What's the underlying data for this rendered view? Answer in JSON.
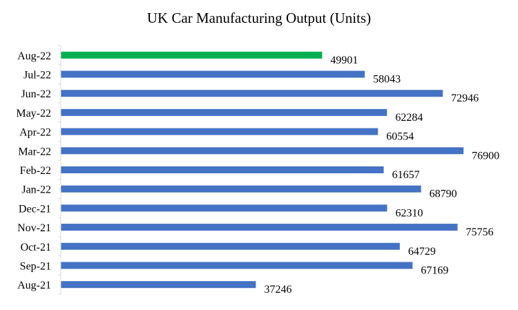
{
  "chart_data": {
    "type": "bar",
    "orientation": "horizontal",
    "title": "UK Car Manufacturing Output (Units)",
    "xlabel": "",
    "ylabel": "",
    "grid": false,
    "legend": "none",
    "categories": [
      "Aug-22",
      "Jul-22",
      "Jun-22",
      "May-22",
      "Apr-22",
      "Mar-22",
      "Feb-22",
      "Jan-22",
      "Dec-21",
      "Nov-21",
      "Oct-21",
      "Sep-21",
      "Aug-21"
    ],
    "values": [
      49901,
      58043,
      72946,
      62284,
      60554,
      76900,
      61657,
      68790,
      62310,
      75756,
      64729,
      67169,
      37246
    ],
    "value_labels": [
      "49901",
      "58043",
      "72946",
      "62284",
      "60554",
      "76900",
      "61657",
      "68790",
      "62310",
      "75756",
      "64729",
      "67169",
      "37246"
    ],
    "bar_colors": [
      "#00b050",
      "#4472c4",
      "#4472c4",
      "#4472c4",
      "#4472c4",
      "#4472c4",
      "#4472c4",
      "#4472c4",
      "#4472c4",
      "#4472c4",
      "#4472c4",
      "#4472c4",
      "#4472c4"
    ],
    "axis_color": "#d9d9d9",
    "xlim": [
      0,
      84000
    ]
  }
}
